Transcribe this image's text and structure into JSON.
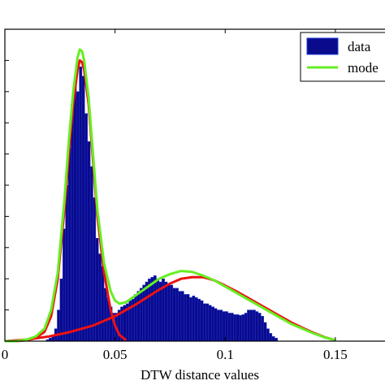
{
  "chart_data": {
    "type": "bar",
    "title": "",
    "xlabel": "DTW distance values",
    "ylabel": "",
    "xlim": [
      0.0,
      0.174
    ],
    "ylim": [
      0,
      1.0
    ],
    "grid": false,
    "legend_placement": "top-right",
    "x_ticks": [
      {
        "value": 0.0,
        "label": "0"
      },
      {
        "value": 0.05,
        "label": "0.05"
      },
      {
        "value": 0.1,
        "label": "0.1"
      },
      {
        "value": 0.15,
        "label": "0.15"
      }
    ],
    "y_tick_values": [
      0.1,
      0.2,
      0.3,
      0.4,
      0.5,
      0.6,
      0.7,
      0.8,
      0.9
    ],
    "legend": [
      {
        "label": "data",
        "kind": "patch",
        "color": "#0a0a8c"
      },
      {
        "label": "mode",
        "kind": "line",
        "color": "#66ee22"
      }
    ],
    "histogram": {
      "name": "data",
      "color": "#0a0a8c",
      "edge_color": "#1f3bd6",
      "bin_start": 0.0,
      "bin_width": 0.00125,
      "counts": [
        0,
        0,
        0,
        0,
        0,
        0,
        0,
        0,
        0,
        0,
        0,
        0,
        0,
        0,
        0,
        0.005,
        0.01,
        0.02,
        0.04,
        0.1,
        0.2,
        0.36,
        0.5,
        0.62,
        0.76,
        0.83,
        0.8,
        0.88,
        0.85,
        0.73,
        0.64,
        0.56,
        0.46,
        0.33,
        0.28,
        0.24,
        0.17,
        0.14,
        0.11,
        0.09,
        0.09,
        0.1,
        0.11,
        0.115,
        0.12,
        0.13,
        0.135,
        0.15,
        0.16,
        0.17,
        0.18,
        0.19,
        0.2,
        0.205,
        0.21,
        0.2,
        0.19,
        0.2,
        0.19,
        0.185,
        0.18,
        0.17,
        0.17,
        0.16,
        0.16,
        0.15,
        0.15,
        0.14,
        0.145,
        0.14,
        0.135,
        0.13,
        0.12,
        0.12,
        0.115,
        0.11,
        0.105,
        0.1,
        0.1,
        0.095,
        0.095,
        0.09,
        0.09,
        0.085,
        0.085,
        0.083,
        0.085,
        0.09,
        0.1,
        0.1,
        0.1,
        0.095,
        0.09,
        0.08,
        0.06,
        0.04,
        0.025,
        0.015,
        0.01,
        0,
        0,
        0,
        0,
        0,
        0,
        0,
        0,
        0,
        0,
        0,
        0,
        0,
        0,
        0,
        0,
        0,
        0,
        0,
        0,
        0,
        0,
        0,
        0,
        0,
        0,
        0,
        0,
        0,
        0,
        0,
        0,
        0,
        0,
        0,
        0,
        0,
        0,
        0,
        0,
        0
      ]
    },
    "series": [
      {
        "name": "mode",
        "color": "#66ee22",
        "x": [
          0.0,
          0.005,
          0.01,
          0.014,
          0.018,
          0.021,
          0.024,
          0.027,
          0.029,
          0.031,
          0.033,
          0.034,
          0.035,
          0.036,
          0.038,
          0.04,
          0.042,
          0.045,
          0.048,
          0.05,
          0.052,
          0.055,
          0.058,
          0.062,
          0.066,
          0.07,
          0.075,
          0.08,
          0.085,
          0.09,
          0.095,
          0.1,
          0.105,
          0.11,
          0.115,
          0.12,
          0.125,
          0.13,
          0.135,
          0.14,
          0.145,
          0.15
        ],
        "y": [
          0.0,
          0.0,
          0.005,
          0.015,
          0.04,
          0.1,
          0.22,
          0.45,
          0.64,
          0.8,
          0.91,
          0.935,
          0.93,
          0.9,
          0.78,
          0.6,
          0.42,
          0.25,
          0.16,
          0.13,
          0.12,
          0.125,
          0.14,
          0.16,
          0.18,
          0.2,
          0.215,
          0.225,
          0.222,
          0.21,
          0.195,
          0.175,
          0.155,
          0.135,
          0.115,
          0.095,
          0.075,
          0.055,
          0.04,
          0.025,
          0.012,
          0.003
        ]
      },
      {
        "name": "",
        "color": "#ee1111",
        "x": [
          0.0,
          0.005,
          0.01,
          0.014,
          0.018,
          0.021,
          0.024,
          0.027,
          0.029,
          0.031,
          0.033,
          0.034,
          0.035,
          0.036,
          0.038,
          0.04,
          0.042,
          0.045,
          0.048,
          0.05,
          0.052,
          0.055
        ],
        "y": [
          0.0,
          0.0,
          0.003,
          0.01,
          0.03,
          0.08,
          0.2,
          0.42,
          0.6,
          0.76,
          0.87,
          0.9,
          0.895,
          0.87,
          0.76,
          0.58,
          0.4,
          0.22,
          0.1,
          0.05,
          0.02,
          0.003
        ]
      },
      {
        "name": "",
        "color": "#ee1111",
        "x": [
          0.0,
          0.01,
          0.02,
          0.03,
          0.04,
          0.05,
          0.06,
          0.07,
          0.075,
          0.08,
          0.085,
          0.09,
          0.095,
          0.1,
          0.105,
          0.11,
          0.115,
          0.12,
          0.125,
          0.13,
          0.135,
          0.14,
          0.145,
          0.15
        ],
        "y": [
          0.0,
          0.005,
          0.015,
          0.03,
          0.05,
          0.08,
          0.12,
          0.165,
          0.185,
          0.2,
          0.205,
          0.205,
          0.195,
          0.178,
          0.16,
          0.14,
          0.12,
          0.1,
          0.08,
          0.06,
          0.043,
          0.027,
          0.013,
          0.003
        ]
      }
    ]
  }
}
